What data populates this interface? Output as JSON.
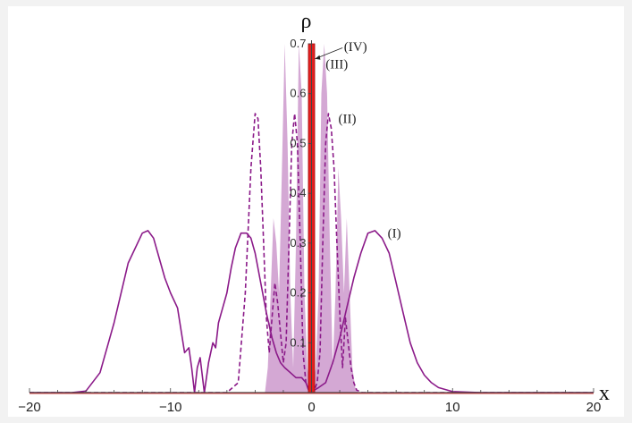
{
  "chart_data": {
    "type": "line",
    "xlabel": "x",
    "ylabel": "ρ",
    "xlim": [
      -20,
      20
    ],
    "ylim": [
      0,
      0.7
    ],
    "x_ticks": [
      -20,
      -10,
      0,
      10,
      20
    ],
    "x_tick_labels": [
      "−20",
      "−10",
      "0",
      "10",
      "20"
    ],
    "y_ticks": [
      0.1,
      0.2,
      0.3,
      0.4,
      0.5,
      0.6,
      0.7
    ],
    "y_tick_labels": [
      "0.1",
      "0.2",
      "0.3",
      "0.4",
      "0.5",
      "0.6",
      "0.7"
    ],
    "annotations": [
      {
        "text": "(I)",
        "x": 5.4,
        "y": 0.32
      },
      {
        "text": "(II)",
        "x": 1.9,
        "y": 0.55
      },
      {
        "text": "(III)",
        "x": 1.0,
        "y": 0.66
      },
      {
        "text": "(IV)",
        "x": 2.3,
        "y": 0.695
      }
    ],
    "series": [
      {
        "label": "(I)",
        "style": "solid",
        "color": "#8b1a89",
        "x": [
          -20,
          -17,
          -16,
          -15,
          -14,
          -13,
          -12,
          -11.6,
          -11.2,
          -10.8,
          -10.4,
          -10,
          -9.5,
          -9,
          -8.7,
          -8.5,
          -8.3,
          -8.1,
          -7.9,
          -7.6,
          -7.3,
          -7.0,
          -6.8,
          -6.6,
          -6.3,
          -6.0,
          -5.7,
          -5.4,
          -5.0,
          -4.6,
          -4.3,
          -4.0,
          -3.6,
          -3.2,
          -2.8,
          -2.5,
          -2.2,
          -1.9,
          -1.5,
          -1.1,
          -0.7,
          -0.4,
          -0.2,
          0,
          0.2,
          0.5,
          1.0,
          1.5,
          2.0,
          2.5,
          3.0,
          3.5,
          4.0,
          4.5,
          5.0,
          5.5,
          6.0,
          6.5,
          7.0,
          7.5,
          8.0,
          8.5,
          9.0,
          10,
          12,
          20
        ],
        "y": [
          0,
          0,
          0.003,
          0.04,
          0.14,
          0.26,
          0.32,
          0.325,
          0.31,
          0.27,
          0.23,
          0.2,
          0.17,
          0.08,
          0.09,
          0.05,
          0.0,
          0.05,
          0.07,
          0.0,
          0.06,
          0.1,
          0.09,
          0.14,
          0.17,
          0.2,
          0.25,
          0.29,
          0.32,
          0.32,
          0.31,
          0.28,
          0.22,
          0.16,
          0.11,
          0.08,
          0.06,
          0.05,
          0.04,
          0.03,
          0.03,
          0.02,
          0.005,
          0.01,
          0.005,
          0.01,
          0.02,
          0.06,
          0.11,
          0.17,
          0.23,
          0.28,
          0.32,
          0.325,
          0.31,
          0.28,
          0.22,
          0.16,
          0.1,
          0.06,
          0.035,
          0.02,
          0.01,
          0.002,
          0,
          0
        ]
      },
      {
        "label": "(II)",
        "style": "dashed",
        "color": "#8b1a89",
        "x": [
          -20,
          -6,
          -5.2,
          -4.7,
          -4.3,
          -4.0,
          -3.8,
          -3.6,
          -3.4,
          -3.2,
          -3.0,
          -2.8,
          -2.6,
          -2.4,
          -2.2,
          -2.0,
          -1.8,
          -1.6,
          -1.4,
          -1.2,
          -1.0,
          -0.8,
          -0.6,
          -0.4,
          -0.2,
          0,
          0.2,
          0.4,
          0.6,
          0.8,
          1.0,
          1.2,
          1.4,
          1.6,
          1.8,
          2.0,
          2.2,
          2.4,
          2.6,
          2.8,
          3.0,
          3.2,
          3.6,
          20
        ],
        "y": [
          0,
          0,
          0.02,
          0.2,
          0.45,
          0.56,
          0.55,
          0.45,
          0.3,
          0.15,
          0.08,
          0.15,
          0.22,
          0.18,
          0.12,
          0.06,
          0.1,
          0.3,
          0.5,
          0.56,
          0.5,
          0.3,
          0.08,
          0.02,
          0.005,
          0,
          0.005,
          0.02,
          0.08,
          0.3,
          0.5,
          0.56,
          0.53,
          0.45,
          0.3,
          0.16,
          0.05,
          0.15,
          0.1,
          0.05,
          0.02,
          0.005,
          0,
          0
        ]
      },
      {
        "label": "(III)",
        "style": "filled",
        "color": "#cc99cc",
        "x": [
          -20,
          -3.3,
          -3.1,
          -2.9,
          -2.7,
          -2.5,
          -2.3,
          -2.1,
          -1.9,
          -1.7,
          -1.5,
          -1.3,
          -1.1,
          -0.9,
          -0.7,
          -0.5,
          -0.3,
          -0.1,
          0,
          0.1,
          0.3,
          0.5,
          0.7,
          0.9,
          1.1,
          1.3,
          1.5,
          1.7,
          1.9,
          2.1,
          2.3,
          2.5,
          2.7,
          2.9,
          3.1,
          3.3,
          20
        ],
        "y": [
          0,
          0,
          0.05,
          0.2,
          0.35,
          0.3,
          0.2,
          0.45,
          0.7,
          0.5,
          0.2,
          0.05,
          0.3,
          0.7,
          0.6,
          0.2,
          0.05,
          0.01,
          0,
          0.01,
          0.05,
          0.2,
          0.6,
          0.7,
          0.6,
          0.3,
          0.05,
          0.2,
          0.45,
          0.35,
          0.2,
          0.35,
          0.2,
          0.05,
          0.01,
          0,
          0
        ]
      },
      {
        "label": "(IV)",
        "style": "solid",
        "color": "#e51f1f",
        "x": [
          -20,
          -0.16,
          -0.16,
          0.16,
          0.16,
          20
        ],
        "y": [
          0,
          0,
          0.7,
          0.7,
          0,
          0
        ]
      }
    ]
  }
}
